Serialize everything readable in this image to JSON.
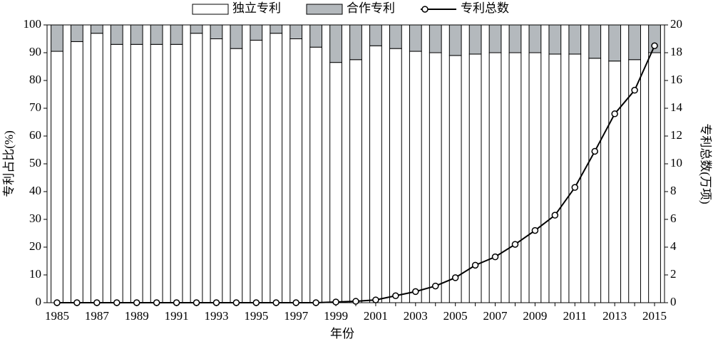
{
  "chart_data": {
    "type": "bar",
    "stacked": true,
    "x_label": "年份",
    "y_label": "专利占比(%)",
    "y2_label": "专利总数(万项)",
    "categories": [
      "1985",
      null,
      "1987",
      null,
      "1989",
      null,
      "1991",
      null,
      "1993",
      null,
      "1995",
      null,
      "1997",
      null,
      "1999",
      null,
      "2001",
      null,
      "2003",
      null,
      "2005",
      null,
      "2007",
      null,
      "2009",
      null,
      "2011",
      null,
      "2013",
      null,
      "2015"
    ],
    "series": [
      {
        "name": "独立专利",
        "type": "bar",
        "color": "#ffffff",
        "values": [
          90.5,
          94,
          97,
          93,
          93,
          93,
          93,
          97,
          95,
          91.5,
          94.5,
          97,
          95,
          92,
          86.5,
          87.5,
          92.5,
          91.5,
          90.5,
          90,
          89,
          89.5,
          90,
          90,
          90,
          89.5,
          89.5,
          88,
          87,
          87.5,
          90
        ]
      },
      {
        "name": "合作专利",
        "type": "bar",
        "color": "#b4b9bd",
        "values": [
          9.5,
          6,
          3,
          7,
          7,
          7,
          7,
          3,
          5,
          8.5,
          5.5,
          3,
          5,
          8,
          13.5,
          12.5,
          7.5,
          8.5,
          9.5,
          10,
          11,
          10.5,
          10,
          10,
          10,
          10.5,
          10.5,
          12,
          13,
          12.5,
          10
        ]
      },
      {
        "name": "专利总数",
        "type": "line",
        "axis": "y2",
        "color": "#000000",
        "values": [
          0,
          0,
          0,
          0,
          0,
          0,
          0,
          0,
          0,
          0,
          0,
          0,
          0,
          0,
          0.05,
          0.1,
          0.2,
          0.5,
          0.8,
          1.2,
          1.8,
          2.7,
          3.3,
          4.2,
          5.2,
          6.3,
          8.3,
          10.9,
          13.6,
          15.3,
          18.5
        ]
      }
    ],
    "ylim": [
      0,
      100
    ],
    "yticks": [
      0,
      10,
      20,
      30,
      40,
      50,
      60,
      70,
      80,
      90,
      100
    ],
    "y2lim": [
      0,
      20
    ],
    "y2ticks": [
      0,
      2,
      4,
      6,
      8,
      10,
      12,
      14,
      16,
      18,
      20
    ],
    "legend": "top"
  }
}
